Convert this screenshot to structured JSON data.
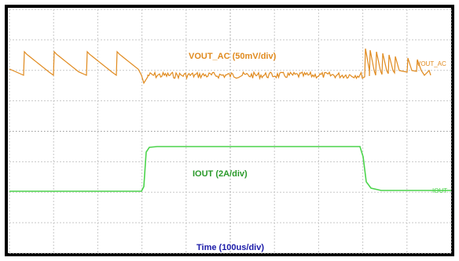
{
  "traces": [
    {
      "label": "VOUT_AC (50mV/div)",
      "marker": "VOUT_AC"
    },
    {
      "label": "IOUT (2A/div)",
      "marker": "IOUT"
    }
  ],
  "time_label": "Time (100us/div)"
}
